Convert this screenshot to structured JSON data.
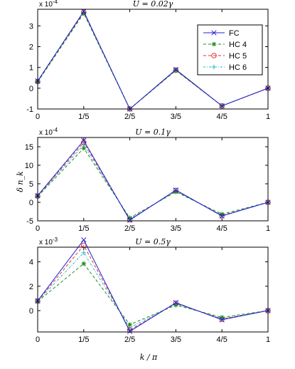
{
  "colors": {
    "FC": "#1f1fd6",
    "HC 4": "#1f8a1f",
    "HC 5": "#e03030",
    "HC 6": "#22b5c4"
  },
  "markers": {
    "FC": "x",
    "HC 4": "star",
    "HC 5": "circle",
    "HC 6": "plus"
  },
  "chart_data": [
    {
      "type": "line",
      "title": "U = 0.02γ",
      "multiplier": "x 10",
      "exponent": "-4",
      "xlabel": "",
      "ylabel": "",
      "x": [
        0,
        0.2,
        0.4,
        0.6,
        0.8,
        1
      ],
      "xticklabels": [
        "0",
        "1/5",
        "2/5",
        "3/5",
        "4/5",
        "1"
      ],
      "ylim": [
        -1,
        3.8
      ],
      "yticks": [
        -1,
        0,
        1,
        2,
        3
      ],
      "legend": "top-right",
      "series": [
        {
          "name": "FC",
          "values": [
            0.35,
            3.7,
            -1.0,
            0.9,
            -0.85,
            0.0
          ]
        },
        {
          "name": "HC 4",
          "values": [
            0.3,
            3.6,
            -1.0,
            0.85,
            -0.85,
            0.0
          ]
        },
        {
          "name": "HC 5",
          "values": [
            0.32,
            3.65,
            -1.0,
            0.87,
            -0.85,
            0.0
          ]
        },
        {
          "name": "HC 6",
          "values": [
            0.33,
            3.66,
            -1.0,
            0.88,
            -0.85,
            0.0
          ]
        }
      ]
    },
    {
      "type": "line",
      "title": "U = 0.1γ",
      "multiplier": "x 10",
      "exponent": "-4",
      "xlabel": "",
      "ylabel": "δ n_k",
      "x": [
        0,
        0.2,
        0.4,
        0.6,
        0.8,
        1
      ],
      "xticklabels": [
        "0",
        "1/5",
        "2/5",
        "3/5",
        "4/5",
        "1"
      ],
      "ylim": [
        -5,
        17.5
      ],
      "yticks": [
        -5,
        0,
        5,
        10,
        15
      ],
      "legend": "",
      "series": [
        {
          "name": "FC",
          "values": [
            1.8,
            16.7,
            -4.8,
            3.3,
            -3.7,
            0.0
          ]
        },
        {
          "name": "HC 4",
          "values": [
            1.6,
            14.6,
            -4.2,
            2.8,
            -3.2,
            0.0
          ]
        },
        {
          "name": "HC 5",
          "values": [
            1.7,
            16.2,
            -4.7,
            3.2,
            -3.6,
            0.0
          ]
        },
        {
          "name": "HC 6",
          "values": [
            1.7,
            15.5,
            -4.5,
            3.0,
            -3.5,
            0.0
          ]
        }
      ]
    },
    {
      "type": "line",
      "title": "U = 0.5γ",
      "multiplier": "x 10",
      "exponent": "-3",
      "xlabel": "k / π",
      "ylabel": "",
      "x": [
        0,
        0.2,
        0.4,
        0.6,
        0.8,
        1
      ],
      "xticklabels": [
        "0",
        "1/5",
        "2/5",
        "3/5",
        "4/5",
        "1"
      ],
      "ylim": [
        -1.75,
        5.2
      ],
      "yticks": [
        0,
        2,
        4
      ],
      "legend": "",
      "series": [
        {
          "name": "FC",
          "values": [
            0.8,
            5.8,
            -1.7,
            0.65,
            -0.75,
            0.0
          ]
        },
        {
          "name": "HC 4",
          "values": [
            0.75,
            3.85,
            -1.15,
            0.45,
            -0.55,
            0.0
          ]
        },
        {
          "name": "HC 5",
          "values": [
            0.78,
            5.35,
            -1.6,
            0.6,
            -0.7,
            0.0
          ]
        },
        {
          "name": "HC 6",
          "values": [
            0.77,
            4.75,
            -1.4,
            0.55,
            -0.65,
            0.0
          ]
        }
      ]
    }
  ]
}
